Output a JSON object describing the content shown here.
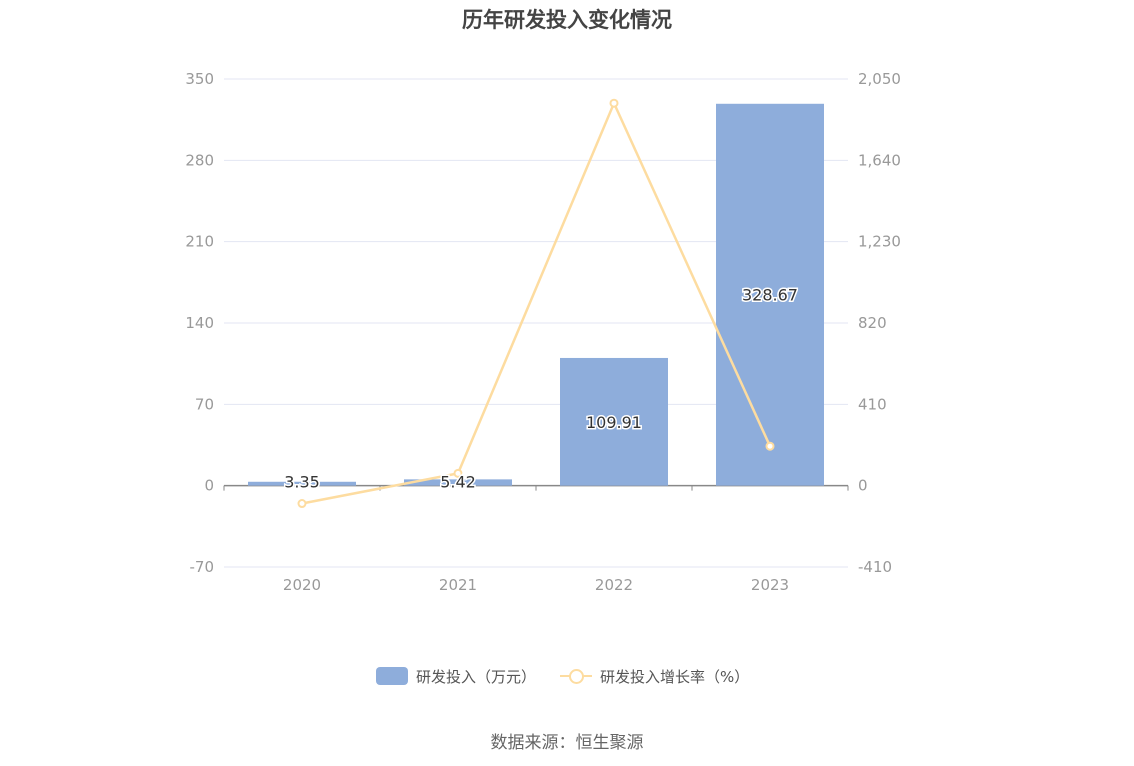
{
  "chart_data": {
    "type": "bar",
    "title": "历年研发投入变化情况",
    "categories": [
      "2020",
      "2021",
      "2022",
      "2023"
    ],
    "series": [
      {
        "name": "研发投入（万元）",
        "type": "bar",
        "axis": "left",
        "values": [
          3.35,
          5.42,
          109.91,
          328.67
        ],
        "labels": [
          "3.35",
          "5.42",
          "109.91",
          "328.67"
        ]
      },
      {
        "name": "研发投入增长率（%）",
        "type": "line",
        "axis": "right",
        "values": [
          -90,
          62,
          1928,
          199
        ]
      }
    ],
    "y_left": {
      "min": -70,
      "max": 350,
      "ticks": [
        "-70",
        "0",
        "70",
        "140",
        "210",
        "280",
        "350"
      ]
    },
    "y_right": {
      "min": -410,
      "max": 2050,
      "ticks": [
        "-410",
        "0",
        "410",
        "820",
        "1,230",
        "1,640",
        "2,050"
      ]
    },
    "grid": true,
    "legend_position": "bottom"
  },
  "colors": {
    "bar": "#8eaddb",
    "line": "#fddca0",
    "grid": "#e3e6f3",
    "axis": "#888888",
    "tick_text": "#999999"
  },
  "source_text": "数据来源：恒生聚源"
}
